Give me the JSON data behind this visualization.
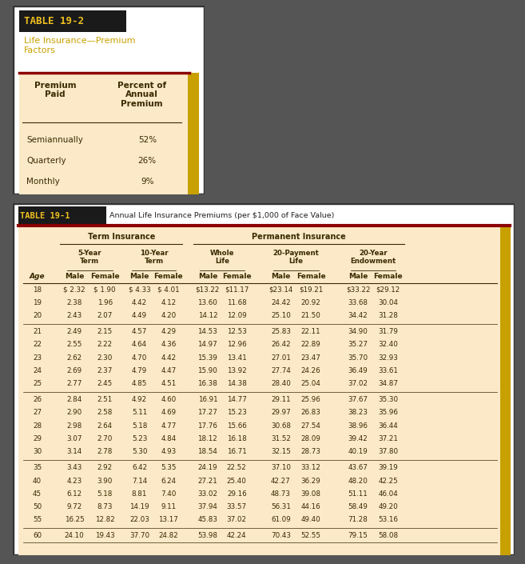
{
  "table2_title": "TABLE 19-2",
  "table2_subtitle": "Life Insurance—Premium\nFactors",
  "table2_col1_header": "Premium\nPaid",
  "table2_col2_header": "Percent of\nAnnual\nPremium",
  "table2_rows": [
    [
      "Semiannually",
      "52%"
    ],
    [
      "Quarterly",
      "26%"
    ],
    [
      "Monthly",
      "9%"
    ]
  ],
  "table1_title": "TABLE 19-1",
  "table1_subtitle": "Annual Life Insurance Premiums (per $1,000 of Face Value)",
  "term_header": "Term Insurance",
  "perm_header": "Permanent Insurance",
  "col_headers": [
    "Age",
    "Male",
    "Female",
    "Male",
    "Female",
    "Male",
    "Female",
    "Male",
    "Female",
    "Male",
    "Female"
  ],
  "rows": [
    [
      "18",
      "$ 2.32",
      "$ 1.90",
      "$ 4.33",
      "$ 4.01",
      "$13.22",
      "$11.17",
      "$23.14",
      "$19.21",
      "$33.22",
      "$29.12"
    ],
    [
      "19",
      "2.38",
      "1.96",
      "4.42",
      "4.12",
      "13.60",
      "11.68",
      "24.42",
      "20.92",
      "33.68",
      "30.04"
    ],
    [
      "20",
      "2.43",
      "2.07",
      "4.49",
      "4.20",
      "14.12",
      "12.09",
      "25.10",
      "21.50",
      "34.42",
      "31.28"
    ],
    [
      "21",
      "2.49",
      "2.15",
      "4.57",
      "4.29",
      "14.53",
      "12.53",
      "25.83",
      "22.11",
      "34.90",
      "31.79"
    ],
    [
      "22",
      "2.55",
      "2.22",
      "4.64",
      "4.36",
      "14.97",
      "12.96",
      "26.42",
      "22.89",
      "35.27",
      "32.40"
    ],
    [
      "23",
      "2.62",
      "2.30",
      "4.70",
      "4.42",
      "15.39",
      "13.41",
      "27.01",
      "23.47",
      "35.70",
      "32.93"
    ],
    [
      "24",
      "2.69",
      "2.37",
      "4.79",
      "4.47",
      "15.90",
      "13.92",
      "27.74",
      "24.26",
      "36.49",
      "33.61"
    ],
    [
      "25",
      "2.77",
      "2.45",
      "4.85",
      "4.51",
      "16.38",
      "14.38",
      "28.40",
      "25.04",
      "37.02",
      "34.87"
    ],
    [
      "26",
      "2.84",
      "2.51",
      "4.92",
      "4.60",
      "16.91",
      "14.77",
      "29.11",
      "25.96",
      "37.67",
      "35.30"
    ],
    [
      "27",
      "2.90",
      "2.58",
      "5.11",
      "4.69",
      "17.27",
      "15.23",
      "29.97",
      "26.83",
      "38.23",
      "35.96"
    ],
    [
      "28",
      "2.98",
      "2.64",
      "5.18",
      "4.77",
      "17.76",
      "15.66",
      "30.68",
      "27.54",
      "38.96",
      "36.44"
    ],
    [
      "29",
      "3.07",
      "2.70",
      "5.23",
      "4.84",
      "18.12",
      "16.18",
      "31.52",
      "28.09",
      "39.42",
      "37.21"
    ],
    [
      "30",
      "3.14",
      "2.78",
      "5.30",
      "4.93",
      "18.54",
      "16.71",
      "32.15",
      "28.73",
      "40.19",
      "37.80"
    ],
    [
      "35",
      "3.43",
      "2.92",
      "6.42",
      "5.35",
      "24.19",
      "22.52",
      "37.10",
      "33.12",
      "43.67",
      "39.19"
    ],
    [
      "40",
      "4.23",
      "3.90",
      "7.14",
      "6.24",
      "27.21",
      "25.40",
      "42.27",
      "36.29",
      "48.20",
      "42.25"
    ],
    [
      "45",
      "6.12",
      "5.18",
      "8.81",
      "7.40",
      "33.02",
      "29.16",
      "48.73",
      "39.08",
      "51.11",
      "46.04"
    ],
    [
      "50",
      "9.72",
      "8.73",
      "14.19",
      "9.11",
      "37.94",
      "33.57",
      "56.31",
      "44.16",
      "58.49",
      "49.20"
    ],
    [
      "55",
      "16.25",
      "12.82",
      "22.03",
      "13.17",
      "45.83",
      "37.02",
      "61.09",
      "49.40",
      "71.28",
      "53.16"
    ],
    [
      "60",
      "24.10",
      "19.43",
      "37.70",
      "24.82",
      "53.98",
      "42.24",
      "70.43",
      "52.55",
      "79.15",
      "58.08"
    ]
  ],
  "bg_color": "#fce9c8",
  "dark_red": "#8b0000",
  "gold_color": "#c8a000",
  "title_bg": "#1a1a1a",
  "title_color": "#f0c020",
  "subtitle_color": "#c8a000",
  "outer_bg": "#555555",
  "text_color": "#3a2a00",
  "white": "#ffffff"
}
